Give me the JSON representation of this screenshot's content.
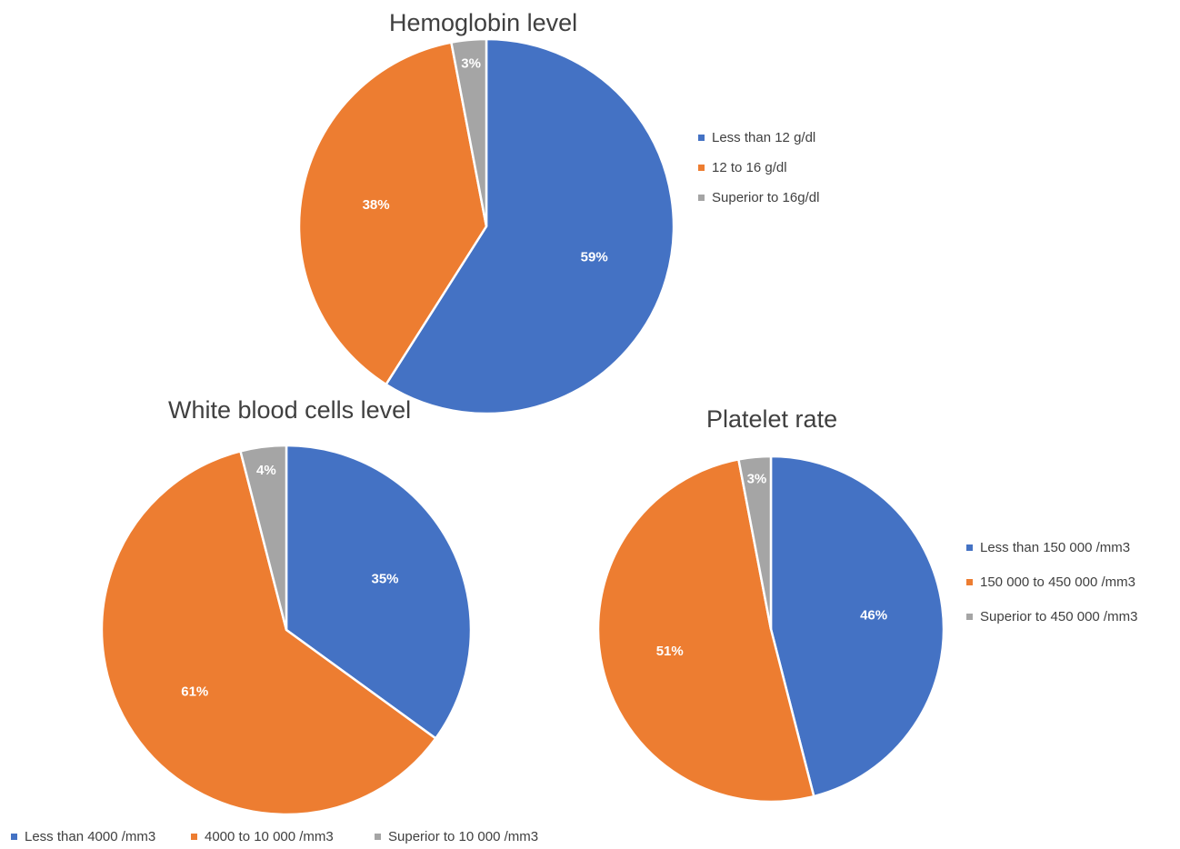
{
  "colors": {
    "blue": "#4472c4",
    "orange": "#ed7d31",
    "gray": "#a5a5a5"
  },
  "chart_data": [
    {
      "type": "pie",
      "title": "Hemoglobin level",
      "categories": [
        "Less than 12 g/dl",
        "12 to 16 g/dl",
        "Superior to 16g/dl"
      ],
      "values": [
        59,
        38,
        3
      ],
      "labels": [
        "59%",
        "38%",
        "3%"
      ],
      "legend_position": "right"
    },
    {
      "type": "pie",
      "title": "White blood cells level",
      "categories": [
        "Less than 4000 /mm3",
        "4000 to 10 000 /mm3",
        "Superior to 10 000 /mm3"
      ],
      "values": [
        35,
        61,
        4
      ],
      "labels": [
        "35%",
        "61%",
        "4%"
      ],
      "legend_position": "bottom"
    },
    {
      "type": "pie",
      "title": "Platelet rate",
      "categories": [
        "Less than 150 000 /mm3",
        "150 000 to 450 000 /mm3",
        "Superior to 450 000 /mm3"
      ],
      "values": [
        46,
        51,
        3
      ],
      "labels": [
        "46%",
        "51%",
        "3%"
      ],
      "legend_position": "right"
    }
  ]
}
